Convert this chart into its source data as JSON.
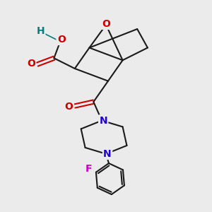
{
  "bg_color": "#ebebeb",
  "bond_color": "#1a1a1a",
  "oxygen_color": "#cc0000",
  "nitrogen_color": "#2200cc",
  "fluorine_color": "#cc00cc",
  "hydrogen_color": "#008080",
  "line_width": 1.5,
  "fig_size": [
    3.0,
    3.0
  ],
  "dpi": 100,
  "xlim": [
    0,
    10
  ],
  "ylim": [
    0,
    10
  ]
}
